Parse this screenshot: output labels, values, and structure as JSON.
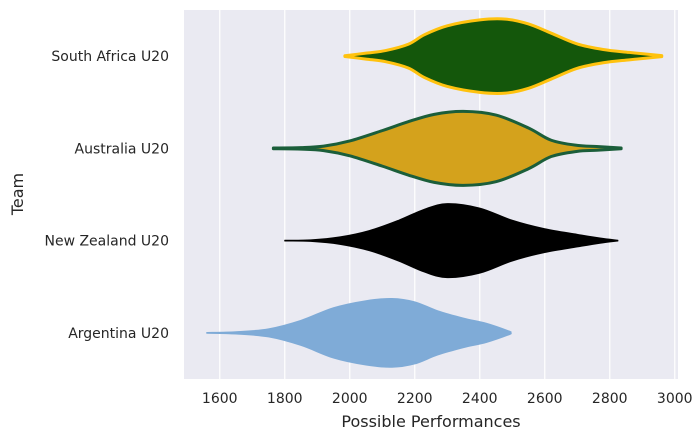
{
  "chart_data": {
    "type": "violin",
    "orientation": "horizontal",
    "xlabel": "Possible Performances",
    "ylabel": "Team",
    "xlim": [
      1490,
      3010
    ],
    "xticks": [
      1600,
      1800,
      2000,
      2200,
      2400,
      2600,
      2800,
      3000
    ],
    "grid": "vertical",
    "background": "#eaeaf2",
    "categories": [
      "South Africa U20",
      "Australia U20",
      "New Zealand U20",
      "Argentina U20"
    ],
    "series": [
      {
        "name": "South Africa U20",
        "fill": "#14570b",
        "edge": "#ffc20e",
        "profile": [
          [
            1985,
            0.01
          ],
          [
            2050,
            0.08
          ],
          [
            2110,
            0.15
          ],
          [
            2180,
            0.32
          ],
          [
            2230,
            0.58
          ],
          [
            2300,
            0.82
          ],
          [
            2400,
            0.98
          ],
          [
            2480,
            1.0
          ],
          [
            2550,
            0.87
          ],
          [
            2620,
            0.62
          ],
          [
            2700,
            0.33
          ],
          [
            2780,
            0.18
          ],
          [
            2860,
            0.1
          ],
          [
            2960,
            0.015
          ]
        ]
      },
      {
        "name": "Australia U20",
        "fill": "#d4a21c",
        "edge": "#1b5e3a",
        "profile": [
          [
            1765,
            0.01
          ],
          [
            1850,
            0.02
          ],
          [
            1920,
            0.06
          ],
          [
            2000,
            0.2
          ],
          [
            2100,
            0.48
          ],
          [
            2180,
            0.72
          ],
          [
            2260,
            0.92
          ],
          [
            2350,
            1.0
          ],
          [
            2450,
            0.9
          ],
          [
            2550,
            0.55
          ],
          [
            2620,
            0.22
          ],
          [
            2700,
            0.08
          ],
          [
            2760,
            0.05
          ],
          [
            2835,
            0.01
          ]
        ]
      },
      {
        "name": "New Zealand U20",
        "fill": "#000000",
        "edge": "#000000",
        "profile": [
          [
            1800,
            0.01
          ],
          [
            1880,
            0.02
          ],
          [
            1970,
            0.1
          ],
          [
            2060,
            0.27
          ],
          [
            2150,
            0.55
          ],
          [
            2230,
            0.85
          ],
          [
            2300,
            1.0
          ],
          [
            2400,
            0.88
          ],
          [
            2500,
            0.55
          ],
          [
            2600,
            0.32
          ],
          [
            2700,
            0.17
          ],
          [
            2770,
            0.07
          ],
          [
            2825,
            0.01
          ]
        ]
      },
      {
        "name": "Argentina U20",
        "fill": "#7fabd7",
        "edge": "#7fabd7",
        "profile": [
          [
            1560,
            0.01
          ],
          [
            1650,
            0.03
          ],
          [
            1750,
            0.11
          ],
          [
            1850,
            0.34
          ],
          [
            1950,
            0.68
          ],
          [
            2050,
            0.87
          ],
          [
            2130,
            0.93
          ],
          [
            2200,
            0.84
          ],
          [
            2270,
            0.6
          ],
          [
            2350,
            0.4
          ],
          [
            2420,
            0.26
          ],
          [
            2490,
            0.05
          ],
          [
            2495,
            0.01
          ]
        ]
      }
    ]
  }
}
